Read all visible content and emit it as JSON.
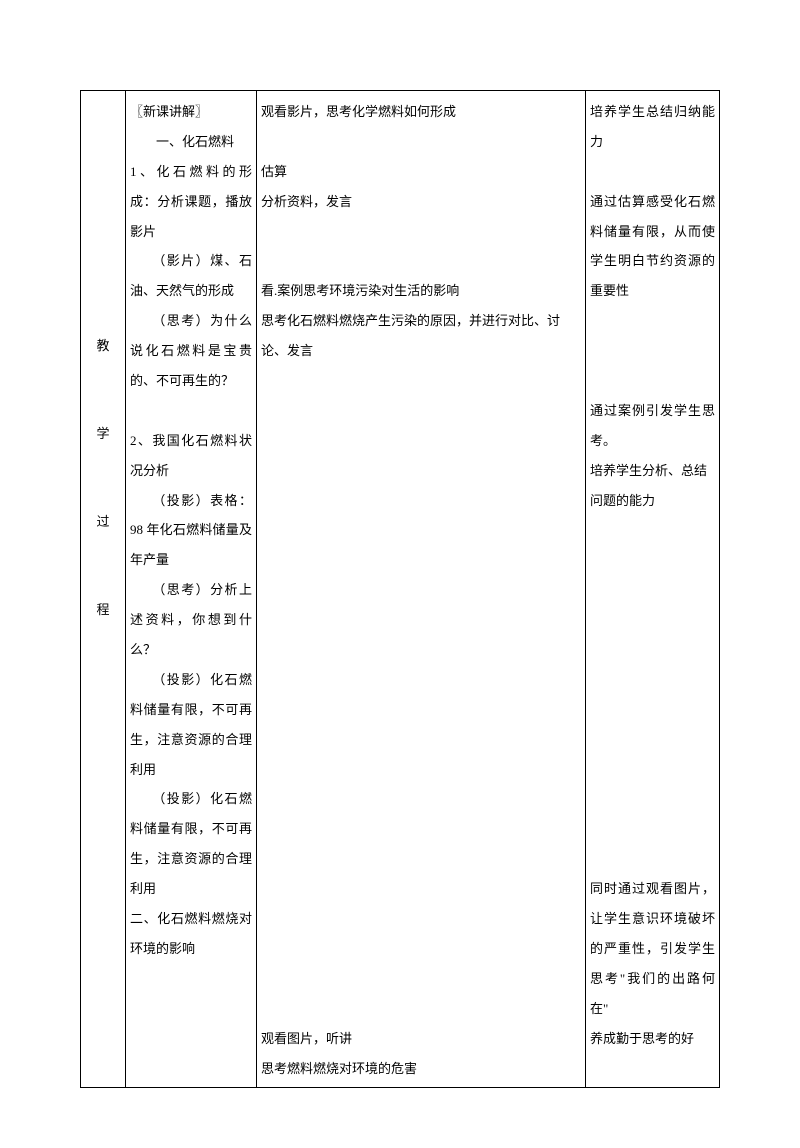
{
  "col1": {
    "chars": [
      "教",
      "学",
      "过",
      "程"
    ]
  },
  "col2": {
    "lines": [
      "〖新课讲解〗",
      "　　一、化石燃料",
      "1、化石燃料的形成：分析课题，播放影片",
      "　　（影片）煤、石油、天然气的形成",
      "　　（思考）为什么说化石燃料是宝贵的、不可再生的？",
      "",
      "2、我国化石燃料状况分析",
      "　　（投影）表格：98 年化石燃料储量及年产量",
      "　　（思考）分析上述资料，你想到什么？",
      "　　（投影）化石燃料储量有限，不可再生，注意资源的合理利用",
      "　　（投影）化石燃料储量有限，不可再生，注意资源的合理利用",
      "二、化石燃料燃烧对环境的影响"
    ]
  },
  "col3": {
    "block1": [
      "观看影片，思考化学燃料如何形成",
      "",
      "估算",
      "分析资料，发言",
      "",
      "",
      "看.案例思考环境污染对生活的影响",
      "思考化石燃料燃烧产生污染的原因，并进行对比、讨论、发言"
    ],
    "block2": [
      "观看图片，听讲",
      "思考燃料燃烧对环境的危害"
    ]
  },
  "col4": {
    "lines": [
      "培养学生总结归纳能力",
      "",
      "通过估算感受化石燃料储量有限，从而使学生明白节约资源的重要性",
      "",
      "",
      "",
      "通过案例引发学生思考。",
      "培养学生分析、总结",
      "问题的能力"
    ],
    "lines2": [
      "同时通过观看图片，让学生意识环境破坏的严重性，引发学生思考\"我们的出路何在\"",
      "养成勤于思考的好"
    ]
  }
}
